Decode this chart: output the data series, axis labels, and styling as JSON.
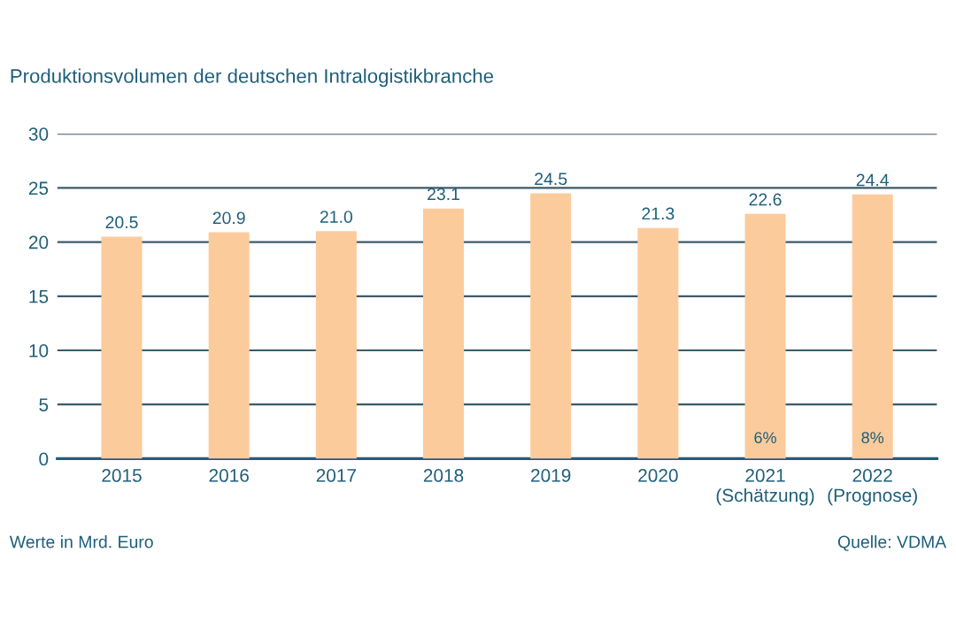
{
  "chart_data": {
    "type": "bar",
    "title": "Produktionsvolumen der deutschen Intralogistikbranche",
    "categories": [
      "2015",
      "2016",
      "2017",
      "2018",
      "2019",
      "2020",
      "2021\n(Schätzung)",
      "2022\n(Prognose)"
    ],
    "values": [
      20.5,
      20.9,
      21.0,
      23.1,
      24.5,
      21.3,
      22.6,
      24.4
    ],
    "color": "#fccb9b",
    "ylim": [
      0,
      30
    ],
    "yticks": [
      0,
      5,
      10,
      15,
      20,
      25,
      30
    ],
    "grid": "y",
    "value_labels": [
      "20.5",
      "20.9",
      "21.0",
      "23.1",
      "24.5",
      "21.3",
      "22.6",
      "24.4"
    ],
    "annotations": [
      "6%",
      "8%",
      "Werte in Mrd. Euro",
      "Quelle: VDMA"
    ]
  }
}
